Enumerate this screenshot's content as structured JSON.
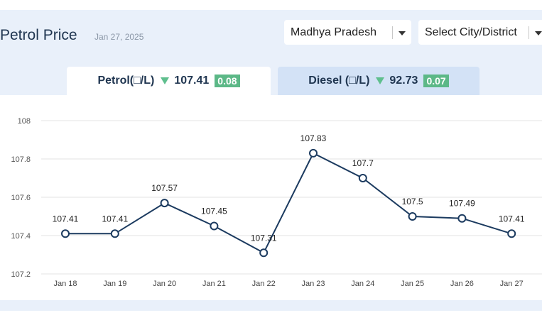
{
  "header": {
    "title": "Petrol Price",
    "date": "Jan 27, 2025",
    "state_select": "Madhya Pradesh",
    "city_select": "Select City/District"
  },
  "tabs": [
    {
      "label": "Petrol(□/L)",
      "price": "107.41",
      "change": "0.08",
      "active": true
    },
    {
      "label": "Diesel (□/L)",
      "price": "92.73",
      "change": "0.07",
      "active": false
    }
  ],
  "colors": {
    "line": "#1b3a5f",
    "down_arrow": "#5fbf8e",
    "badge": "#5cb887",
    "grid": "#e3e3e3",
    "panel": "#e9f0fa"
  },
  "chart_data": {
    "type": "line",
    "categories": [
      "Jan 18",
      "Jan 19",
      "Jan 20",
      "Jan 21",
      "Jan 22",
      "Jan 23",
      "Jan 24",
      "Jan 25",
      "Jan 26",
      "Jan 27"
    ],
    "series": [
      {
        "values": [
          107.41,
          107.41,
          107.57,
          107.45,
          107.31,
          107.83,
          107.7,
          107.5,
          107.49,
          107.41
        ]
      }
    ],
    "data_labels": [
      "107.41",
      "107.41",
      "107.57",
      "107.45",
      "107.31",
      "107.83",
      "107.7",
      "107.5",
      "107.49",
      "107.41"
    ],
    "yticks": [
      "107.2",
      "107.4",
      "107.6",
      "107.8",
      "108"
    ],
    "ylim": [
      107.2,
      108
    ],
    "grid": true,
    "legend": "none"
  }
}
